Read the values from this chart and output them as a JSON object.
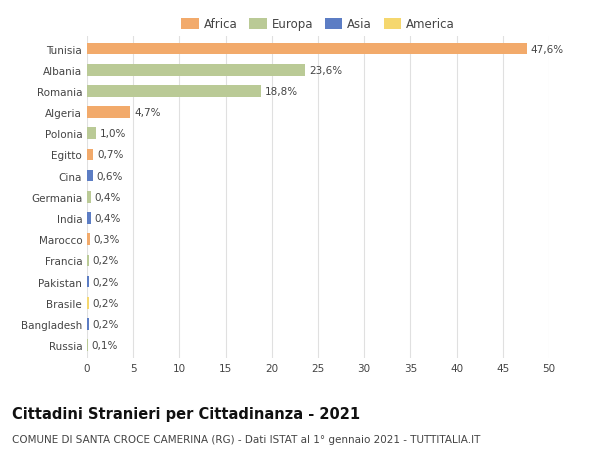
{
  "countries": [
    "Tunisia",
    "Albania",
    "Romania",
    "Algeria",
    "Polonia",
    "Egitto",
    "Cina",
    "Germania",
    "India",
    "Marocco",
    "Francia",
    "Pakistan",
    "Brasile",
    "Bangladesh",
    "Russia"
  ],
  "values": [
    47.6,
    23.6,
    18.8,
    4.7,
    1.0,
    0.7,
    0.6,
    0.4,
    0.4,
    0.3,
    0.2,
    0.2,
    0.2,
    0.2,
    0.1
  ],
  "labels": [
    "47,6%",
    "23,6%",
    "18,8%",
    "4,7%",
    "1,0%",
    "0,7%",
    "0,6%",
    "0,4%",
    "0,4%",
    "0,3%",
    "0,2%",
    "0,2%",
    "0,2%",
    "0,2%",
    "0,1%"
  ],
  "continents": [
    "Africa",
    "Europa",
    "Europa",
    "Africa",
    "Europa",
    "Africa",
    "Asia",
    "Europa",
    "Asia",
    "Africa",
    "Europa",
    "Asia",
    "America",
    "Asia",
    "Europa"
  ],
  "colors": {
    "Africa": "#F2AA6B",
    "Europa": "#BACA96",
    "Asia": "#5C7DC4",
    "America": "#F5D76E"
  },
  "legend_colors": {
    "Africa": "#F2AA6B",
    "Europa": "#BACA96",
    "Asia": "#5C7DC4",
    "America": "#F5D76E"
  },
  "xlim": [
    0,
    50
  ],
  "xticks": [
    0,
    5,
    10,
    15,
    20,
    25,
    30,
    35,
    40,
    45,
    50
  ],
  "title": "Cittadini Stranieri per Cittadinanza - 2021",
  "subtitle": "COMUNE DI SANTA CROCE CAMERINA (RG) - Dati ISTAT al 1° gennaio 2021 - TUTTITALIA.IT",
  "background_color": "#ffffff",
  "grid_color": "#e0e0e0",
  "bar_height": 0.55,
  "label_fontsize": 7.5,
  "tick_fontsize": 7.5,
  "title_fontsize": 10.5,
  "subtitle_fontsize": 7.5
}
